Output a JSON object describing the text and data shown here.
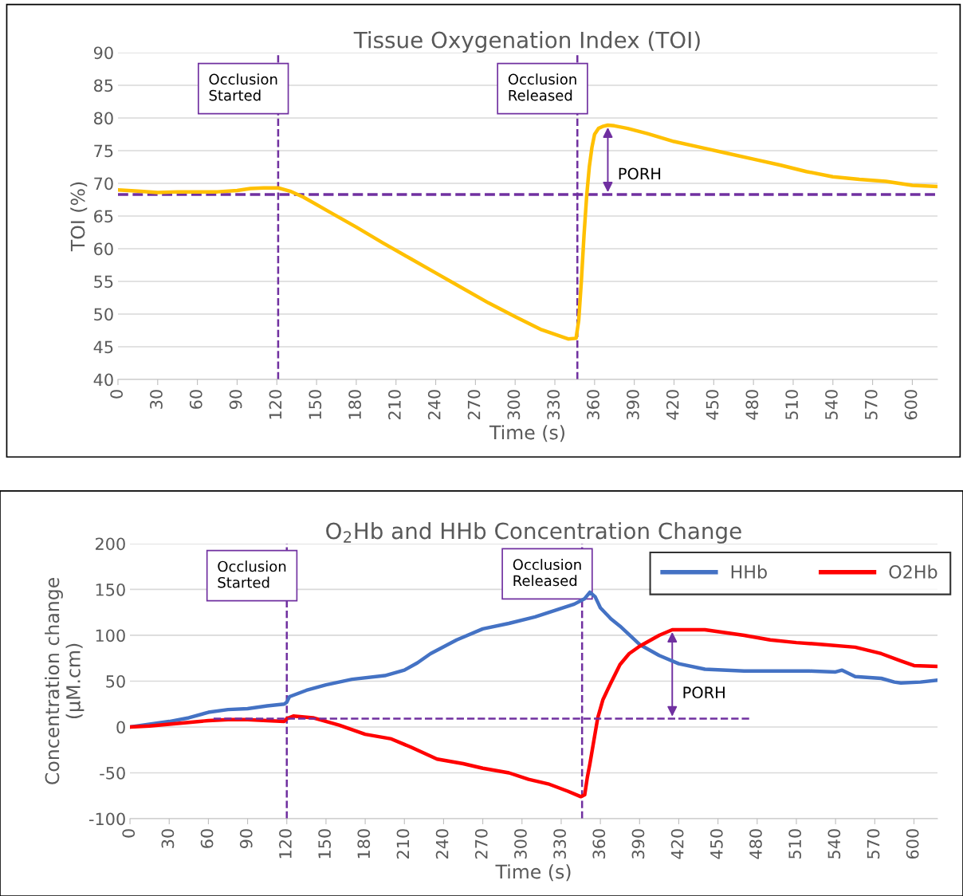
{
  "chart_data": [
    {
      "type": "line",
      "title": "Tissue Oxygenation Index (TOI)",
      "xlabel": "Time (s)",
      "ylabel": "TOI (%)",
      "xlim": [
        0,
        619
      ],
      "xticks": [
        0,
        30,
        60,
        90,
        120,
        150,
        180,
        210,
        240,
        270,
        300,
        330,
        360,
        390,
        420,
        450,
        480,
        510,
        540,
        570,
        600
      ],
      "ylim": [
        40,
        90
      ],
      "yticks": [
        40,
        45,
        50,
        55,
        60,
        65,
        70,
        75,
        80,
        85,
        90
      ],
      "grid": "y",
      "legend": false,
      "line_style": "solid",
      "series": [
        {
          "color": "#ffc000",
          "x": [
            0,
            15,
            30,
            45,
            60,
            75,
            90,
            100,
            110,
            121,
            130,
            140,
            160,
            180,
            200,
            220,
            240,
            260,
            280,
            300,
            320,
            340,
            346,
            348,
            350,
            352,
            354,
            356,
            358,
            360,
            363,
            366,
            370,
            375,
            385,
            400,
            420,
            440,
            460,
            480,
            500,
            520,
            540,
            560,
            580,
            600,
            619
          ],
          "values": [
            69,
            68.8,
            68.6,
            68.7,
            68.7,
            68.7,
            68.9,
            69.2,
            69.3,
            69.3,
            68.8,
            67.9,
            65.6,
            63.3,
            60.9,
            58.6,
            56.3,
            54.0,
            51.7,
            49.6,
            47.6,
            46.2,
            46.3,
            49,
            55,
            62,
            68,
            72.5,
            75.5,
            77.5,
            78.4,
            78.7,
            78.9,
            78.8,
            78.4,
            77.6,
            76.4,
            75.5,
            74.6,
            73.7,
            72.8,
            71.8,
            71.0,
            70.6,
            70.3,
            69.7,
            69.5
          ]
        }
      ],
      "ref_lines": [
        {
          "axis": "y",
          "value": 68.3,
          "color": "#7030a0",
          "line_style": "dashed"
        },
        {
          "axis": "x",
          "value": 121,
          "color": "#7030a0",
          "line_style": "dashed"
        },
        {
          "axis": "x",
          "value": 347,
          "color": "#7030a0",
          "line_style": "dashed"
        }
      ],
      "annotations": [
        {
          "text": "Occlusion\nStarted",
          "x": 121,
          "y": 84.5
        },
        {
          "text": "Occlusion\nReleased",
          "x": 347,
          "y": 84.5
        },
        "PORH"
      ]
    },
    {
      "type": "line",
      "title": "O$_{2}$Hb and HHb Concentration Change",
      "xlabel": "Time (s)",
      "ylabel": "Concentration change\n(µM.cm)",
      "xlim": [
        0,
        618
      ],
      "xticks": [
        0,
        30,
        60,
        90,
        120,
        150,
        180,
        210,
        240,
        270,
        300,
        330,
        360,
        390,
        420,
        450,
        480,
        510,
        540,
        570,
        600
      ],
      "ylim": [
        -100,
        200
      ],
      "yticks": [
        -100,
        -50,
        0,
        50,
        100,
        150,
        200
      ],
      "grid": "y",
      "legend": "top right",
      "line_style": "solid",
      "series": [
        {
          "name": "HHb",
          "color": "#4472c4",
          "x": [
            0,
            15,
            30,
            45,
            60,
            75,
            90,
            105,
            118,
            120,
            122,
            135,
            150,
            170,
            195,
            210,
            220,
            230,
            250,
            270,
            290,
            310,
            325,
            340,
            348,
            352,
            356,
            360,
            368,
            375,
            390,
            405,
            420,
            440,
            470,
            500,
            520,
            540,
            545,
            555,
            575,
            585,
            590,
            605,
            618
          ],
          "values": [
            0,
            3,
            6,
            10,
            16,
            19,
            20,
            23,
            25,
            27,
            33,
            40,
            46,
            52,
            56,
            62,
            70,
            80,
            95,
            107,
            113,
            120,
            127,
            134,
            140,
            147,
            142,
            130,
            118,
            110,
            90,
            78,
            69,
            63,
            61,
            61,
            61,
            60,
            62,
            55,
            53,
            49,
            48,
            49,
            51
          ]
        },
        {
          "name": "O2Hb",
          "color": "#ff0000",
          "x": [
            0,
            15,
            30,
            45,
            60,
            75,
            90,
            105,
            118,
            120,
            125,
            140,
            160,
            180,
            200,
            215,
            235,
            255,
            270,
            290,
            305,
            320,
            335,
            345,
            348,
            350,
            352,
            355,
            358,
            362,
            368,
            375,
            382,
            390,
            405,
            415,
            440,
            470,
            490,
            510,
            530,
            555,
            575,
            590,
            600,
            618
          ],
          "values": [
            0,
            1,
            3,
            5,
            7,
            8,
            8,
            7,
            6,
            9,
            12,
            10,
            2,
            -8,
            -13,
            -22,
            -35,
            -40,
            -45,
            -50,
            -57,
            -62,
            -70,
            -76,
            -74,
            -55,
            -40,
            -15,
            10,
            30,
            48,
            68,
            80,
            88,
            100,
            106,
            106,
            100,
            95,
            92,
            90,
            87,
            80,
            72,
            67,
            66
          ]
        },
        {
          "color": "#7030a0",
          "line_style": "dashed",
          "x": [
            64,
            474
          ],
          "values": [
            9,
            9
          ]
        }
      ],
      "ref_lines": [
        {
          "axis": "x",
          "value": 120,
          "color": "#7030a0",
          "line_style": "dashed"
        },
        {
          "axis": "x",
          "value": 346,
          "color": "#7030a0",
          "line_style": "dashed"
        }
      ],
      "annotations": [
        {
          "text": "Occlusion\nStarted",
          "x": 120,
          "y": 165
        },
        {
          "text": "Occlusion\nReleased",
          "x": 346,
          "y": 167
        },
        "PORH"
      ]
    }
  ]
}
